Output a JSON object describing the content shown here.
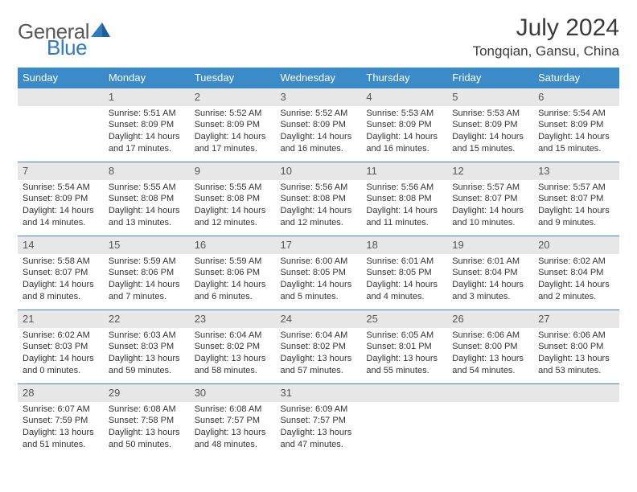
{
  "brand": {
    "text1": "General",
    "text2": "Blue"
  },
  "title": "July 2024",
  "location": "Tongqian, Gansu, China",
  "colors": {
    "header_bg": "#3b8bc9",
    "header_text": "#ffffff",
    "daynum_bg": "#e7e7e7",
    "text": "#333333",
    "rule": "#3b8bc9",
    "brand_gray": "#5a5a5a",
    "brand_blue": "#2f7bbf"
  },
  "weekdays": [
    "Sunday",
    "Monday",
    "Tuesday",
    "Wednesday",
    "Thursday",
    "Friday",
    "Saturday"
  ],
  "layout": {
    "first_weekday_index": 1,
    "days_in_month": 31
  },
  "days": {
    "1": {
      "sunrise": "5:51 AM",
      "sunset": "8:09 PM",
      "daylight": "14 hours and 17 minutes."
    },
    "2": {
      "sunrise": "5:52 AM",
      "sunset": "8:09 PM",
      "daylight": "14 hours and 17 minutes."
    },
    "3": {
      "sunrise": "5:52 AM",
      "sunset": "8:09 PM",
      "daylight": "14 hours and 16 minutes."
    },
    "4": {
      "sunrise": "5:53 AM",
      "sunset": "8:09 PM",
      "daylight": "14 hours and 16 minutes."
    },
    "5": {
      "sunrise": "5:53 AM",
      "sunset": "8:09 PM",
      "daylight": "14 hours and 15 minutes."
    },
    "6": {
      "sunrise": "5:54 AM",
      "sunset": "8:09 PM",
      "daylight": "14 hours and 15 minutes."
    },
    "7": {
      "sunrise": "5:54 AM",
      "sunset": "8:09 PM",
      "daylight": "14 hours and 14 minutes."
    },
    "8": {
      "sunrise": "5:55 AM",
      "sunset": "8:08 PM",
      "daylight": "14 hours and 13 minutes."
    },
    "9": {
      "sunrise": "5:55 AM",
      "sunset": "8:08 PM",
      "daylight": "14 hours and 12 minutes."
    },
    "10": {
      "sunrise": "5:56 AM",
      "sunset": "8:08 PM",
      "daylight": "14 hours and 12 minutes."
    },
    "11": {
      "sunrise": "5:56 AM",
      "sunset": "8:08 PM",
      "daylight": "14 hours and 11 minutes."
    },
    "12": {
      "sunrise": "5:57 AM",
      "sunset": "8:07 PM",
      "daylight": "14 hours and 10 minutes."
    },
    "13": {
      "sunrise": "5:57 AM",
      "sunset": "8:07 PM",
      "daylight": "14 hours and 9 minutes."
    },
    "14": {
      "sunrise": "5:58 AM",
      "sunset": "8:07 PM",
      "daylight": "14 hours and 8 minutes."
    },
    "15": {
      "sunrise": "5:59 AM",
      "sunset": "8:06 PM",
      "daylight": "14 hours and 7 minutes."
    },
    "16": {
      "sunrise": "5:59 AM",
      "sunset": "8:06 PM",
      "daylight": "14 hours and 6 minutes."
    },
    "17": {
      "sunrise": "6:00 AM",
      "sunset": "8:05 PM",
      "daylight": "14 hours and 5 minutes."
    },
    "18": {
      "sunrise": "6:01 AM",
      "sunset": "8:05 PM",
      "daylight": "14 hours and 4 minutes."
    },
    "19": {
      "sunrise": "6:01 AM",
      "sunset": "8:04 PM",
      "daylight": "14 hours and 3 minutes."
    },
    "20": {
      "sunrise": "6:02 AM",
      "sunset": "8:04 PM",
      "daylight": "14 hours and 2 minutes."
    },
    "21": {
      "sunrise": "6:02 AM",
      "sunset": "8:03 PM",
      "daylight": "14 hours and 0 minutes."
    },
    "22": {
      "sunrise": "6:03 AM",
      "sunset": "8:03 PM",
      "daylight": "13 hours and 59 minutes."
    },
    "23": {
      "sunrise": "6:04 AM",
      "sunset": "8:02 PM",
      "daylight": "13 hours and 58 minutes."
    },
    "24": {
      "sunrise": "6:04 AM",
      "sunset": "8:02 PM",
      "daylight": "13 hours and 57 minutes."
    },
    "25": {
      "sunrise": "6:05 AM",
      "sunset": "8:01 PM",
      "daylight": "13 hours and 55 minutes."
    },
    "26": {
      "sunrise": "6:06 AM",
      "sunset": "8:00 PM",
      "daylight": "13 hours and 54 minutes."
    },
    "27": {
      "sunrise": "6:06 AM",
      "sunset": "8:00 PM",
      "daylight": "13 hours and 53 minutes."
    },
    "28": {
      "sunrise": "6:07 AM",
      "sunset": "7:59 PM",
      "daylight": "13 hours and 51 minutes."
    },
    "29": {
      "sunrise": "6:08 AM",
      "sunset": "7:58 PM",
      "daylight": "13 hours and 50 minutes."
    },
    "30": {
      "sunrise": "6:08 AM",
      "sunset": "7:57 PM",
      "daylight": "13 hours and 48 minutes."
    },
    "31": {
      "sunrise": "6:09 AM",
      "sunset": "7:57 PM",
      "daylight": "13 hours and 47 minutes."
    }
  },
  "labels": {
    "sunrise": "Sunrise:",
    "sunset": "Sunset:",
    "daylight": "Daylight:"
  }
}
